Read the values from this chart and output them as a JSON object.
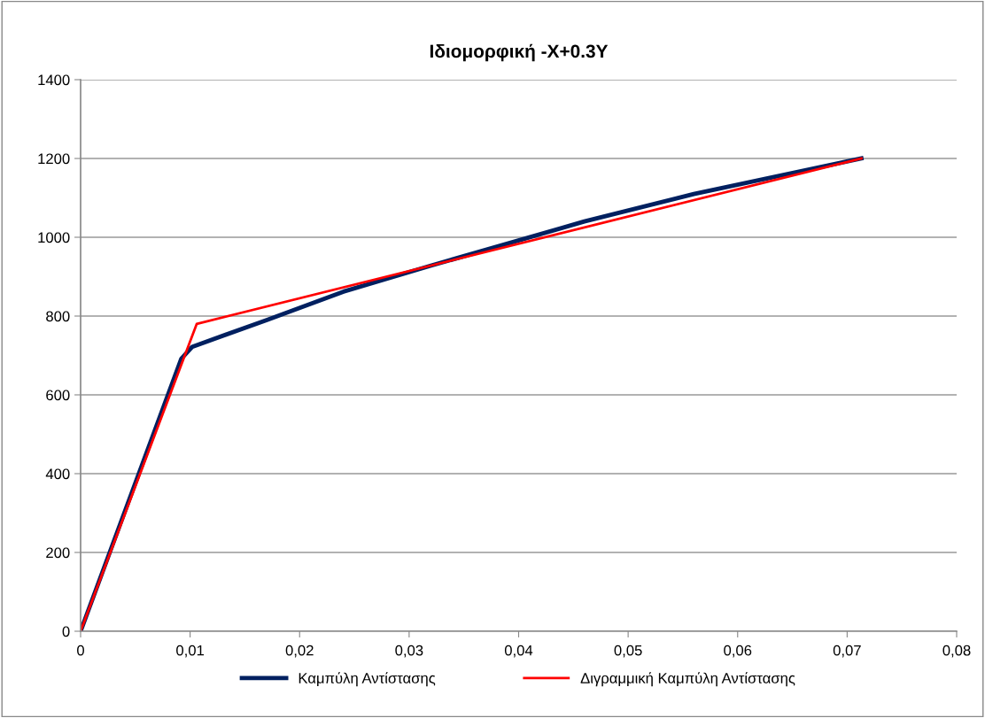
{
  "chart_data": {
    "type": "line",
    "title": "Ιδιομορφική -X+0.3Y",
    "series": [
      {
        "name": "Καμπύλη Αντίστασης",
        "color": "#002060",
        "x": [
          0,
          0.0092,
          0.0102,
          0.017,
          0.024,
          0.032,
          0.046,
          0.056,
          0.0713
        ],
        "values": [
          0,
          692,
          722,
          790,
          862,
          928,
          1040,
          1110,
          1200
        ]
      },
      {
        "name": "Διγραμμική Καμπύλη Αντίστασης",
        "color": "#ff0000",
        "x": [
          0,
          0.0106,
          0.0713
        ],
        "values": [
          0,
          780,
          1200
        ]
      }
    ],
    "xlim": [
      0,
      0.08
    ],
    "xticks": [
      0,
      {
        "value": 0.01,
        "label": "0,01"
      },
      {
        "value": 0.02,
        "label": "0,02"
      },
      {
        "value": 0.03,
        "label": "0,03"
      },
      {
        "value": 0.04,
        "label": "0,04"
      },
      {
        "value": 0.05,
        "label": "0,05"
      },
      {
        "value": 0.06,
        "label": "0,06"
      },
      {
        "value": 0.07,
        "label": "0,07"
      },
      {
        "value": 0.08,
        "label": "0,08"
      }
    ],
    "ylim": [
      0,
      1400
    ],
    "yticks": [
      0,
      200,
      400,
      600,
      800,
      1000,
      1200,
      1400
    ],
    "grid": "y",
    "legend": "bottom",
    "marker": "none",
    "line_style": "solid"
  }
}
